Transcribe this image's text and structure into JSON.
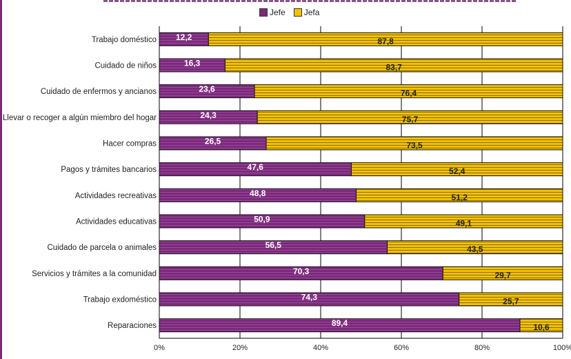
{
  "chart_data": {
    "type": "bar",
    "orientation": "horizontal",
    "stacked": true,
    "percent": true,
    "categories": [
      "Trabajo doméstico",
      "Cuidado de niños",
      "Cuidado de enfermos y ancianos",
      "Llevar o recoger a algún miembro del hogar",
      "Hacer compras",
      "Pagos y trámites bancarios",
      "Actividades recreativas",
      "Actividades educativas",
      "Cuidado de parcela o animales",
      "Servicios y trámites a la comunidad",
      "Trabajo exdoméstico",
      "Reparaciones"
    ],
    "series": [
      {
        "name": "Jefe",
        "color": "#7b2a7b",
        "values": [
          12.2,
          16.3,
          23.6,
          24.3,
          26.5,
          47.6,
          48.8,
          50.9,
          56.5,
          70.3,
          74.3,
          89.4
        ],
        "labels": [
          "12,2",
          "16,3",
          "23,6",
          "24,3",
          "26,5",
          "47,6",
          "48,8",
          "50,9",
          "56,5",
          "70,3",
          "74,3",
          "89,4"
        ]
      },
      {
        "name": "Jefa",
        "color": "#f2c200",
        "values": [
          87.8,
          83.7,
          76.4,
          75.7,
          73.5,
          52.4,
          51.2,
          49.1,
          43.5,
          29.7,
          25.7,
          10.6
        ],
        "labels": [
          "87,8",
          "83,7",
          "76,4",
          "75,7",
          "73,5",
          "52,4",
          "51,2",
          "49,1",
          "43,5",
          "29,7",
          "25,7",
          "10,6"
        ]
      }
    ],
    "xlim": [
      0,
      100
    ],
    "x_ticks": [
      "0%",
      "20%",
      "40%",
      "60%",
      "80%",
      "100%"
    ],
    "grid": true,
    "legend": "top-center"
  }
}
